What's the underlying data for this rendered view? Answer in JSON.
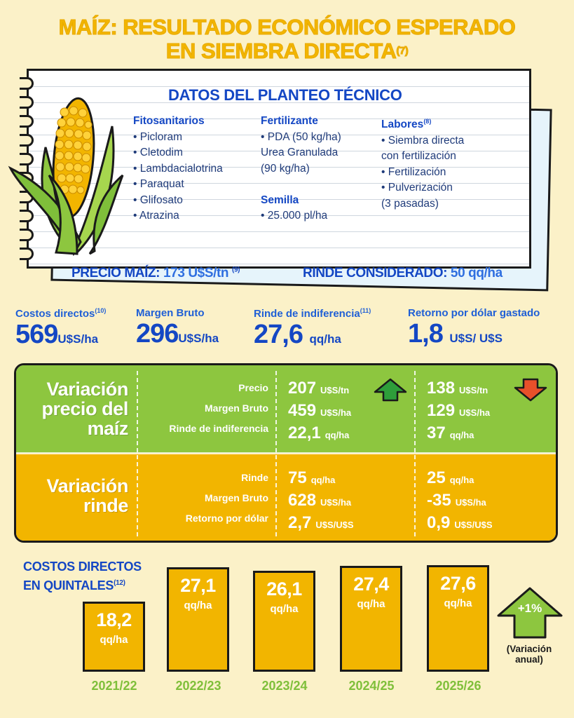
{
  "header": {
    "title_line1": "MAÍZ: RESULTADO ECONÓMICO ESPERADO",
    "title_line2": "EN SIEMBRA DIRECTA",
    "title_ref": "(7)"
  },
  "planteo": {
    "title": "DATOS DEL PLANTEO TÉCNICO",
    "fitosanitarios": {
      "heading": "Fitosanitarios",
      "items": [
        "• Picloram",
        "• Cletodim",
        "• Lambdacialotrina",
        "• Paraquat",
        "• Glifosato",
        "• Atrazina"
      ]
    },
    "fertilizante": {
      "heading": "Fertilizante",
      "items": [
        "• PDA (50 kg/ha)",
        "Urea Granulada",
        "(90 kg/ha)"
      ]
    },
    "semilla": {
      "heading": "Semilla",
      "items": [
        "• 25.000 pl/ha"
      ]
    },
    "labores": {
      "heading": "Labores",
      "ref": "(8)",
      "items": [
        "• Siembra directa",
        "con fertilización",
        "• Fertilización",
        "• Pulverización",
        "(3 pasadas)"
      ]
    },
    "precio_label": "PRECIO MAÍZ:",
    "precio_value": "173 U$S/tn",
    "precio_ref": "(9)",
    "rinde_label": "RINDE CONSIDERADO:",
    "rinde_value": "50 qq/ha"
  },
  "kpis": [
    {
      "label": "Costos directos",
      "ref": "(10)",
      "value": "569",
      "unit": "U$S/ha"
    },
    {
      "label": "Margen Bruto",
      "ref": "",
      "value": "296",
      "unit": "U$S/ha"
    },
    {
      "label": "Rinde de indiferencia",
      "ref": "(11)",
      "value": "27,6",
      "unit": "qq/ha"
    },
    {
      "label": "Retorno por dólar gastado",
      "ref": "",
      "value": "1,8",
      "unit": "U$S/ U$S"
    }
  ],
  "variacion_precio": {
    "heading_l1": "Variación",
    "heading_l2": "precio del",
    "heading_l3": "maíz",
    "labels": [
      "Precio",
      "Margen Bruto",
      "Rinde de indiferencia"
    ],
    "up": [
      {
        "value": "207",
        "unit": "U$S/tn"
      },
      {
        "value": "459",
        "unit": "U$S/ha"
      },
      {
        "value": "22,1",
        "unit": "qq/ha"
      }
    ],
    "down": [
      {
        "value": "138",
        "unit": "U$S/tn"
      },
      {
        "value": "129",
        "unit": "U$S/ha"
      },
      {
        "value": "37",
        "unit": "qq/ha"
      }
    ],
    "up_color": "#2e9e3a",
    "down_color": "#e8502a"
  },
  "variacion_rinde": {
    "heading_l1": "Variación",
    "heading_l2": "rinde",
    "labels": [
      "Rinde",
      "Margen Bruto",
      "Retorno por dólar"
    ],
    "up": [
      {
        "value": "75",
        "unit": "qq/ha"
      },
      {
        "value": "628",
        "unit": "U$S/ha"
      },
      {
        "value": "2,7",
        "unit": "U$S/U$S"
      }
    ],
    "down": [
      {
        "value": "25",
        "unit": "qq/ha"
      },
      {
        "value": "-35",
        "unit": "U$S/ha"
      },
      {
        "value": "0,9",
        "unit": "U$S/U$S"
      }
    ]
  },
  "bars_section": {
    "title_l1": "COSTOS DIRECTOS",
    "title_l2": "EN QUINTALES",
    "title_ref": "(12)",
    "variation_label": "+1%",
    "variation_note_l1": "(Variación",
    "variation_note_l2": "anual)"
  },
  "chart_data": {
    "type": "bar",
    "categories": [
      "2021/22",
      "2022/23",
      "2023/24",
      "2024/25",
      "2025/26"
    ],
    "values": [
      18.2,
      27.1,
      26.1,
      27.4,
      27.6
    ],
    "value_labels": [
      "18,2",
      "27,1",
      "26,1",
      "27,4",
      "27,6"
    ],
    "unit": "qq/ha",
    "title": "COSTOS DIRECTOS EN QUINTALES(12)",
    "ylim": [
      0,
      27.6
    ]
  },
  "colors": {
    "yellow": "#f2b500",
    "green": "#8dc63f",
    "blue": "#1447c4",
    "background": "#fbf1c8"
  }
}
